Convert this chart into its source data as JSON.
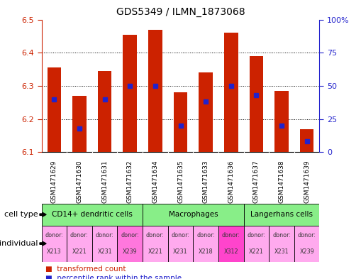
{
  "title": "GDS5349 / ILMN_1873068",
  "samples": [
    "GSM1471629",
    "GSM1471630",
    "GSM1471631",
    "GSM1471632",
    "GSM1471634",
    "GSM1471635",
    "GSM1471633",
    "GSM1471636",
    "GSM1471637",
    "GSM1471638",
    "GSM1471639"
  ],
  "transformed_count": [
    6.355,
    6.27,
    6.345,
    6.455,
    6.47,
    6.28,
    6.34,
    6.46,
    6.39,
    6.285,
    6.17
  ],
  "percentile_rank": [
    40,
    18,
    40,
    50,
    50,
    20,
    38,
    50,
    43,
    20,
    8
  ],
  "ylim": [
    6.1,
    6.5
  ],
  "yticks": [
    6.1,
    6.2,
    6.3,
    6.4,
    6.5
  ],
  "y2ticks": [
    0,
    25,
    50,
    75,
    100
  ],
  "y2ticklabels": [
    "0",
    "25",
    "50",
    "75",
    "100%"
  ],
  "bar_color": "#cc2200",
  "blue_color": "#2222cc",
  "cell_groups": [
    {
      "label": "CD14+ dendritic cells",
      "start": 0,
      "end": 4,
      "color": "#88ee88"
    },
    {
      "label": "Macrophages",
      "start": 4,
      "end": 8,
      "color": "#88ee88"
    },
    {
      "label": "Langerhans cells",
      "start": 8,
      "end": 11,
      "color": "#88ee88"
    }
  ],
  "individuals": [
    "X213",
    "X221",
    "X231",
    "X239",
    "X221",
    "X231",
    "X218",
    "X312",
    "X221",
    "X231",
    "X239"
  ],
  "individual_colors": [
    "#ffaaee",
    "#ffaaee",
    "#ffaaee",
    "#ff77dd",
    "#ffaaee",
    "#ffaaee",
    "#ffaaee",
    "#ff44cc",
    "#ffaaee",
    "#ffaaee",
    "#ffaaee"
  ],
  "bg_color": "#ffffff",
  "tick_color_left": "#cc2200",
  "tick_color_right": "#2222cc",
  "legend_red_label": "transformed count",
  "legend_blue_label": "percentile rank within the sample",
  "xtick_bg": "#cccccc",
  "grid_ticks": [
    6.2,
    6.3,
    6.4
  ]
}
